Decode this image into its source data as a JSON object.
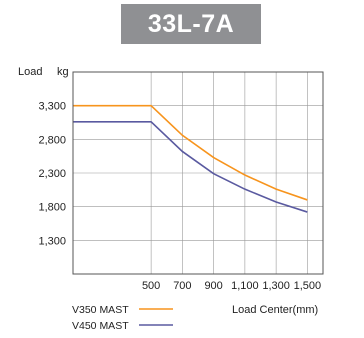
{
  "chart_data": {
    "type": "line",
    "title": "33L-7A",
    "ylabel_main": "Load",
    "ylabel_unit": "kg",
    "xlabel": "Load Center(mm)",
    "x_ticks": [
      "500",
      "700",
      "900",
      "1,100",
      "1,300",
      "1,500"
    ],
    "y_ticks": [
      "3,300",
      "2,800",
      "2,300",
      "1,800",
      "1,300"
    ],
    "xlim": [
      0,
      1600
    ],
    "ylim": [
      800,
      3800
    ],
    "grid": true,
    "legend_position": "bottom-left",
    "series": [
      {
        "name": "V350 MAST",
        "color": "#f7941d",
        "x": [
          0,
          500,
          700,
          900,
          1100,
          1300,
          1500
        ],
        "y": [
          3300,
          3300,
          2860,
          2530,
          2270,
          2060,
          1900
        ]
      },
      {
        "name": "V450 MAST",
        "color": "#5a5aa0",
        "x": [
          0,
          500,
          700,
          900,
          1100,
          1300,
          1500
        ],
        "y": [
          3060,
          3060,
          2620,
          2290,
          2060,
          1870,
          1720
        ]
      }
    ]
  }
}
